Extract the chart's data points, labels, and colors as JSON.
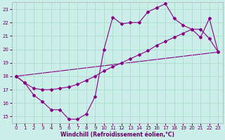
{
  "xlabel": "Windchill (Refroidissement éolien,°C)",
  "bg_color": "#cceee8",
  "line_color": "#880088",
  "grid_color": "#aaddcc",
  "xlim": [
    -0.5,
    23.5
  ],
  "ylim": [
    14.5,
    23.5
  ],
  "yticks": [
    15,
    16,
    17,
    18,
    19,
    20,
    21,
    22,
    23
  ],
  "xticks": [
    0,
    1,
    2,
    3,
    4,
    5,
    6,
    7,
    8,
    9,
    10,
    11,
    12,
    13,
    14,
    15,
    16,
    17,
    18,
    19,
    20,
    21,
    22,
    23
  ],
  "series1_x": [
    0,
    1,
    2,
    3,
    4,
    5,
    6,
    7,
    8,
    9,
    10,
    11,
    12,
    13,
    14,
    15,
    16,
    17,
    18,
    19,
    20,
    21,
    22,
    23
  ],
  "series1_y": [
    18.0,
    17.5,
    16.6,
    16.1,
    15.5,
    15.5,
    14.8,
    14.8,
    15.2,
    16.5,
    20.0,
    22.4,
    21.9,
    22.0,
    22.0,
    22.8,
    23.1,
    23.4,
    22.3,
    21.8,
    21.5,
    20.9,
    22.3,
    19.8
  ],
  "series2_x": [
    0,
    1,
    2,
    3,
    4,
    5,
    6,
    7,
    8,
    9,
    10,
    11,
    12,
    13,
    14,
    15,
    16,
    17,
    18,
    19,
    20,
    21,
    22,
    23
  ],
  "series2_y": [
    18.0,
    17.5,
    17.1,
    17.0,
    17.0,
    17.1,
    17.2,
    17.4,
    17.7,
    18.0,
    18.4,
    18.7,
    19.0,
    19.3,
    19.6,
    19.9,
    20.3,
    20.6,
    20.9,
    21.2,
    21.5,
    21.5,
    20.8,
    19.8
  ],
  "series3_x": [
    0,
    23
  ],
  "series3_y": [
    18.0,
    19.8
  ]
}
